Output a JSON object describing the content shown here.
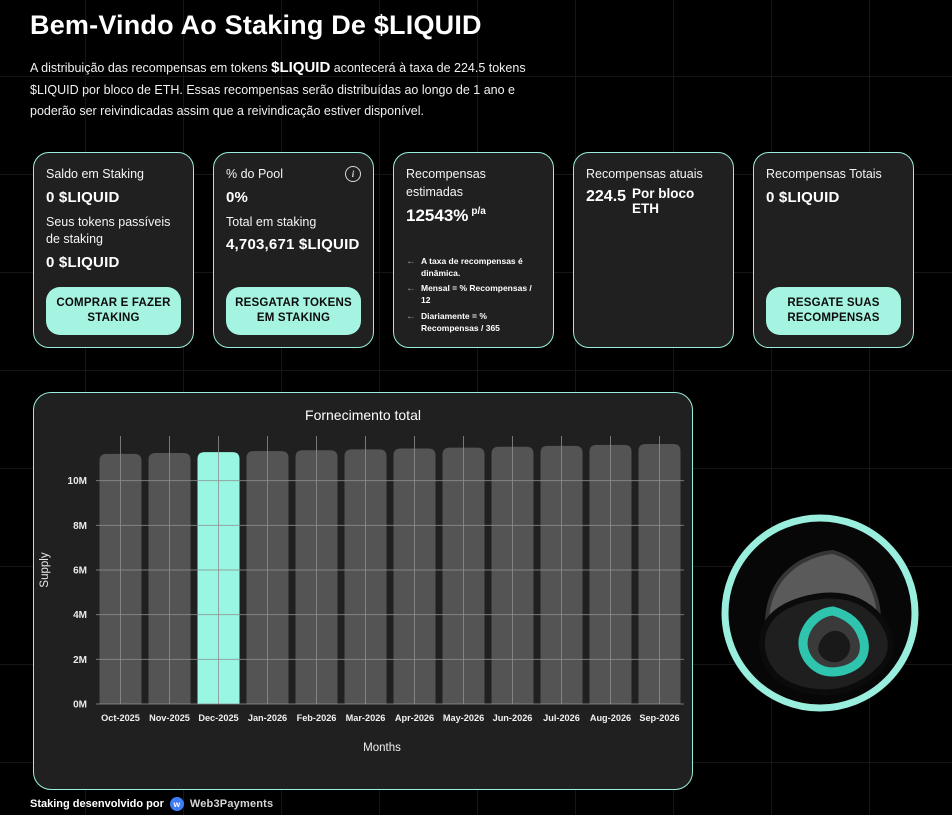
{
  "page": {
    "title": "Bem-Vindo Ao Staking De $LIQUID",
    "description_part1": "A distribuição das recompensas em tokens ",
    "description_token": "$LIQUID",
    "description_part2": " acontecerá à taxa de 224.5 tokens $LIQUID por bloco de ETH. Essas recompensas serão distribuídas ao longo de 1 ano e poderão ser reivindicadas assim que a reivindicação estiver disponível."
  },
  "cards": {
    "staking_balance": {
      "label": "Saldo em Staking",
      "value": "0 $LIQUID",
      "sub_label": "Seus tokens passíveis de staking",
      "sub_value": "0 $LIQUID",
      "button": "COMPRAR E FAZER STAKING"
    },
    "pool_share": {
      "label": "% do Pool",
      "info_icon": "i",
      "value": "0%",
      "total_label": "Total em staking",
      "total_value": "4,703,671 $LIQUID",
      "button": "RESGATAR TOKENS EM STAKING"
    },
    "estimated_rewards": {
      "label": "Recompensas estimadas",
      "value": "12543%",
      "unit": "p/a",
      "arrow": "←",
      "notes": [
        "A taxa de recompensas é dinâmica.",
        "Mensal = % Recompensas / 12",
        "Diariamente = % Recompensas / 365"
      ]
    },
    "current_rewards": {
      "label": "Recompensas atuais",
      "value": "224.5",
      "unit": "Por bloco ETH"
    },
    "total_rewards": {
      "label": "Recompensas Totais",
      "value": "0 $LIQUID",
      "button": "RESGATE SUAS RECOMPENSAS"
    }
  },
  "chart_data": {
    "type": "bar",
    "title": "Fornecimento total",
    "xlabel": "Months",
    "ylabel": "Supply",
    "categories": [
      "Oct-2025",
      "Nov-2025",
      "Dec-2025",
      "Jan-2026",
      "Feb-2026",
      "Mar-2026",
      "Apr-2026",
      "May-2026",
      "Jun-2026",
      "Jul-2026",
      "Aug-2026",
      "Sep-2026"
    ],
    "values": [
      11200000,
      11240000,
      11280000,
      11320000,
      11360000,
      11400000,
      11440000,
      11480000,
      11520000,
      11560000,
      11600000,
      11640000
    ],
    "highlight_index": 2,
    "highlight_category": "Dec-2025",
    "yticks": [
      "0M",
      "2M",
      "4M",
      "6M",
      "8M",
      "10M"
    ],
    "ytick_values": [
      0,
      2000000,
      4000000,
      6000000,
      8000000,
      10000000
    ],
    "ylim": [
      0,
      12000000
    ],
    "grid": true,
    "legend": false,
    "bar_color": "#545454",
    "highlight_color": "#98f6e2",
    "grid_color": "#8f8f8f"
  },
  "footer": {
    "text": "Staking desenvolvido por",
    "badge": "w",
    "brand": "Web3Payments"
  },
  "colors": {
    "accent_border": "#9aeedd",
    "button_bg": "#a5f4e2",
    "card_bg": "#202020",
    "badge_blue": "#3d7bf7"
  }
}
